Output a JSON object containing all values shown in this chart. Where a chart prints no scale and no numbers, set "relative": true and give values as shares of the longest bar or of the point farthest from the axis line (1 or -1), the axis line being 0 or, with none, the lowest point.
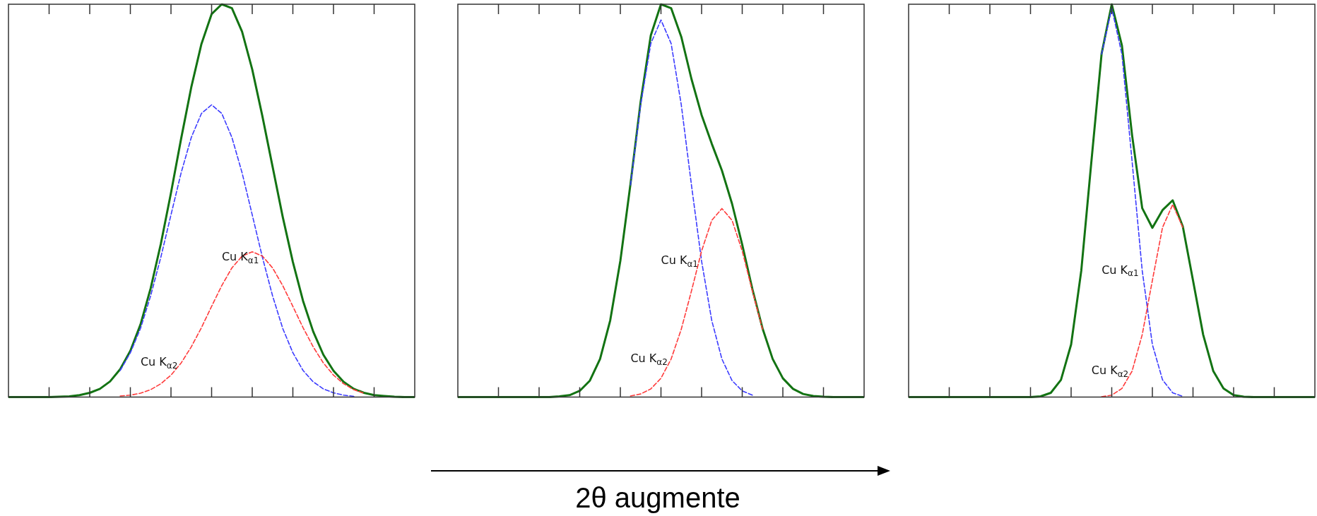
{
  "chart_data": [
    {
      "type": "line",
      "relative": true,
      "grid": false,
      "legend": false,
      "marker": "none",
      "categories": [
        null,
        null,
        null,
        null,
        null,
        null,
        null,
        null,
        null,
        null,
        null,
        null,
        null,
        null,
        null,
        null,
        null,
        null,
        null,
        null,
        null,
        null,
        null,
        null,
        null,
        null,
        null,
        null,
        null,
        null,
        null,
        null,
        null,
        null,
        null,
        null,
        null,
        null,
        null,
        null,
        null
      ],
      "series": [
        {
          "color": "#137313",
          "line_style": "solid",
          "values": [
            0,
            0,
            0,
            0,
            0,
            0.001,
            0.002,
            0.005,
            0.011,
            0.021,
            0.04,
            0.071,
            0.118,
            0.185,
            0.277,
            0.39,
            0.52,
            0.658,
            0.789,
            0.899,
            0.975,
            1,
            0.99,
            0.93,
            0.834,
            0.715,
            0.587,
            0.459,
            0.344,
            0.245,
            0.167,
            0.108,
            0.067,
            0.039,
            0.021,
            0.011,
            0.005,
            0.003,
            0.001,
            0,
            0
          ]
        },
        {
          "name": "Cu K$_{α1}$",
          "color": "#3b3bff",
          "line_style": "dashed",
          "values": [
            null,
            null,
            null,
            null,
            null,
            null,
            null,
            null,
            null,
            null,
            null,
            0.068,
            0.113,
            0.175,
            0.258,
            0.356,
            0.464,
            0.571,
            0.661,
            0.722,
            0.744,
            0.722,
            0.661,
            0.571,
            0.464,
            0.356,
            0.258,
            0.175,
            0.113,
            0.068,
            0.039,
            0.021,
            0.011,
            0.005,
            0.002,
            null,
            null,
            null,
            null,
            null,
            null
          ]
        },
        {
          "name": "Cu K$_{α2}$",
          "color": "#ff3b3b",
          "line_style": "dashed",
          "values": [
            null,
            null,
            null,
            null,
            null,
            null,
            null,
            null,
            null,
            null,
            null,
            0.003,
            0.005,
            0.01,
            0.019,
            0.034,
            0.056,
            0.087,
            0.128,
            0.177,
            0.231,
            0.284,
            0.329,
            0.359,
            0.37,
            0.359,
            0.329,
            0.284,
            0.231,
            0.177,
            0.128,
            0.087,
            0.056,
            0.034,
            0.019,
            0.01,
            null,
            null,
            null,
            null,
            null
          ]
        }
      ]
    },
    {
      "type": "line",
      "relative": true,
      "xlabel": "2θ augmente",
      "grid": false,
      "legend": false,
      "marker": "none",
      "categories": [
        null,
        null,
        null,
        null,
        null,
        null,
        null,
        null,
        null,
        null,
        null,
        null,
        null,
        null,
        null,
        null,
        null,
        null,
        null,
        null,
        null,
        null,
        null,
        null,
        null,
        null,
        null,
        null,
        null,
        null,
        null,
        null,
        null,
        null,
        null,
        null,
        null,
        null,
        null,
        null,
        null
      ],
      "series": [
        {
          "color": "#137313",
          "line_style": "solid",
          "values": [
            0,
            0,
            0,
            0,
            0,
            0,
            0,
            0,
            0,
            0,
            0.002,
            0.005,
            0.016,
            0.042,
            0.097,
            0.195,
            0.347,
            0.543,
            0.752,
            0.921,
            1,
            0.99,
            0.917,
            0.81,
            0.718,
            0.645,
            0.577,
            0.492,
            0.388,
            0.275,
            0.175,
            0.097,
            0.048,
            0.021,
            0.008,
            0.003,
            0.001,
            0,
            0,
            0,
            0
          ]
        },
        {
          "name": "Cu K$_{α1}$",
          "color": "#3b3bff",
          "line_style": "dashed",
          "values": [
            null,
            null,
            null,
            null,
            null,
            null,
            null,
            null,
            null,
            null,
            null,
            null,
            null,
            null,
            null,
            null,
            null,
            0.54,
            0.744,
            0.9,
            0.96,
            0.9,
            0.744,
            0.54,
            0.346,
            0.195,
            0.097,
            0.042,
            0.016,
            0.005,
            null,
            null,
            null,
            null,
            null,
            null,
            null,
            null,
            null,
            null,
            null
          ]
        },
        {
          "name": "Cu K$_{α2}$",
          "color": "#ff3b3b",
          "line_style": "dashed",
          "values": [
            null,
            null,
            null,
            null,
            null,
            null,
            null,
            null,
            null,
            null,
            null,
            null,
            null,
            null,
            null,
            null,
            null,
            0.003,
            0.008,
            0.021,
            0.048,
            0.097,
            0.173,
            0.27,
            0.372,
            0.45,
            0.48,
            0.45,
            0.372,
            0.27,
            0.173,
            null,
            null,
            null,
            null,
            null,
            null,
            null,
            null,
            null,
            null
          ]
        }
      ]
    },
    {
      "type": "line",
      "relative": true,
      "grid": false,
      "legend": false,
      "marker": "none",
      "categories": [
        null,
        null,
        null,
        null,
        null,
        null,
        null,
        null,
        null,
        null,
        null,
        null,
        null,
        null,
        null,
        null,
        null,
        null,
        null,
        null,
        null,
        null,
        null,
        null,
        null,
        null,
        null,
        null,
        null,
        null,
        null,
        null,
        null,
        null,
        null,
        null,
        null,
        null,
        null,
        null,
        null
      ],
      "series": [
        {
          "color": "#137313",
          "line_style": "solid",
          "values": [
            0,
            0,
            0,
            0,
            0,
            0,
            0,
            0,
            0,
            0,
            0,
            0,
            0,
            0.002,
            0.011,
            0.044,
            0.134,
            0.322,
            0.601,
            0.874,
            1,
            0.895,
            0.667,
            0.481,
            0.431,
            0.476,
            0.501,
            0.434,
            0.297,
            0.159,
            0.066,
            0.022,
            0.005,
            0.001,
            0,
            0,
            0,
            0,
            0,
            0,
            0
          ]
        },
        {
          "name": "Cu K$_{α1}$",
          "color": "#3b3bff",
          "line_style": "dashed",
          "values": [
            null,
            null,
            null,
            null,
            null,
            null,
            null,
            null,
            null,
            null,
            null,
            null,
            null,
            null,
            null,
            null,
            null,
            null,
            null,
            0.873,
            0.99,
            0.873,
            0.601,
            0.322,
            0.134,
            0.044,
            0.011,
            0.002,
            null,
            null,
            null,
            null,
            null,
            null,
            null,
            null,
            null,
            null,
            null,
            null,
            null
          ]
        },
        {
          "name": "Cu K$_{α2}$",
          "color": "#ff3b3b",
          "line_style": "dashed",
          "values": [
            null,
            null,
            null,
            null,
            null,
            null,
            null,
            null,
            null,
            null,
            null,
            null,
            null,
            null,
            null,
            null,
            null,
            null,
            null,
            0.001,
            0.005,
            0.022,
            0.066,
            0.159,
            0.297,
            0.432,
            0.49,
            0.432,
            null,
            null,
            null,
            null,
            null,
            null,
            null,
            null,
            null,
            null,
            null,
            null,
            null
          ]
        }
      ]
    }
  ]
}
